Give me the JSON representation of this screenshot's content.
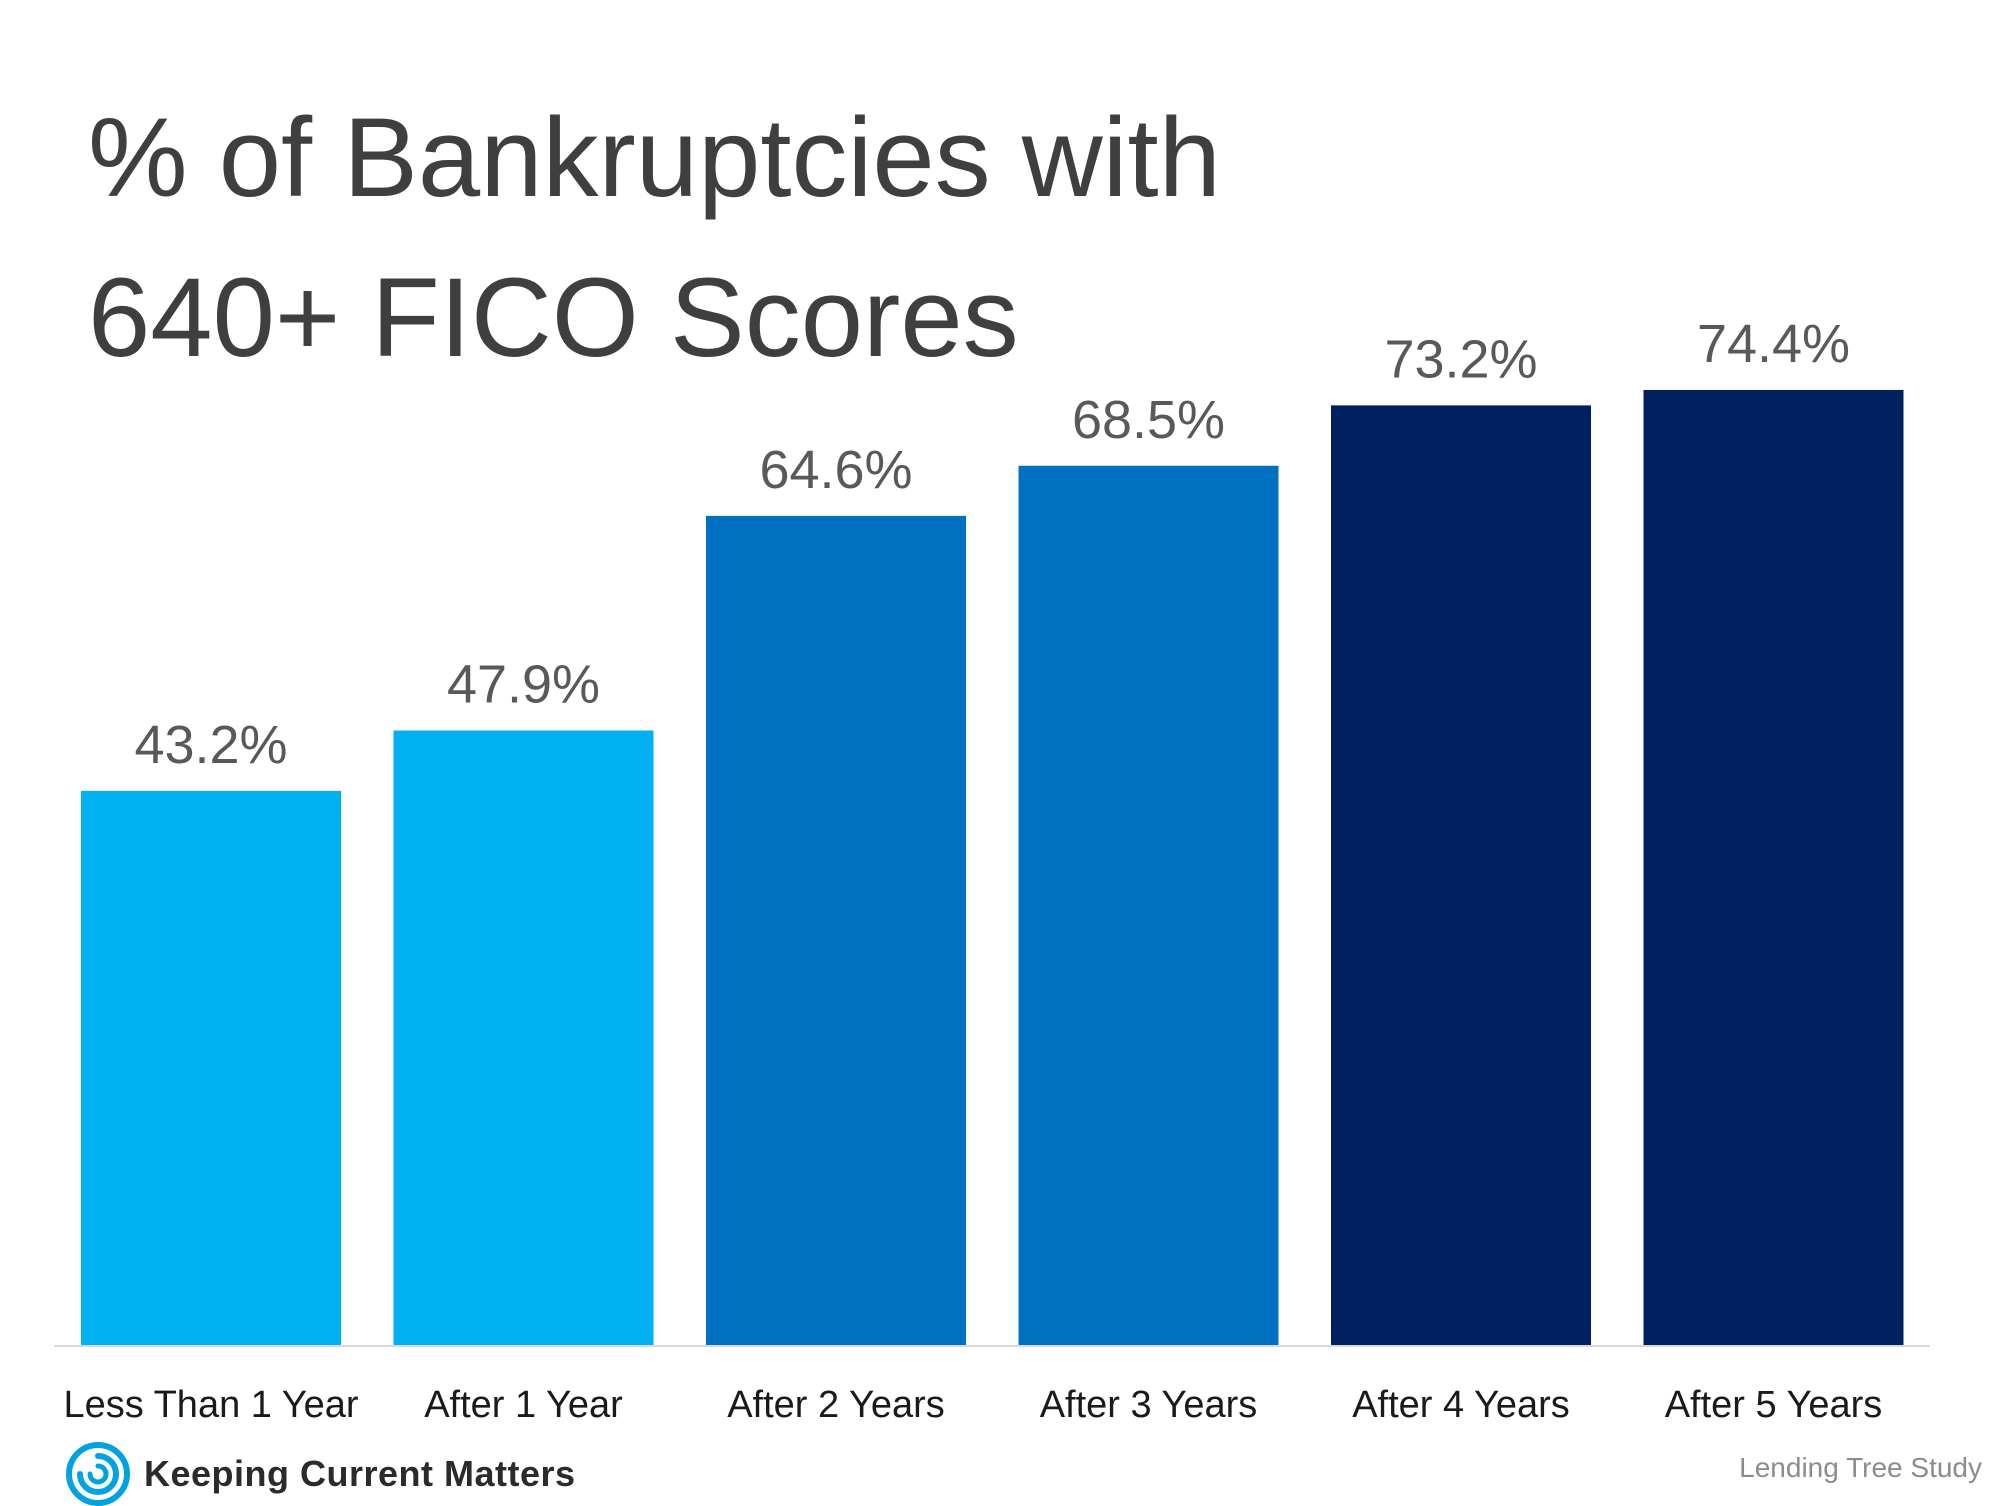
{
  "title_line1": "% of Bankruptcies with",
  "title_line2": "640+ FICO Scores",
  "logo": {
    "icon": "swirl-icon",
    "text": "Keeping Current Matters",
    "color": "#00a3e0"
  },
  "source": "Lending Tree Study",
  "chart_data": {
    "type": "bar",
    "title": "% of Bankruptcies with 640+ FICO Scores",
    "categories": [
      "Less Than 1 Year",
      "After 1 Year",
      "After 2 Years",
      "After 3 Years",
      "After 4 Years",
      "After 5 Years"
    ],
    "values": [
      43.2,
      47.9,
      64.6,
      68.5,
      73.2,
      74.4
    ],
    "data_labels": [
      "43.2%",
      "47.9%",
      "64.6%",
      "68.5%",
      "73.2%",
      "74.4%"
    ],
    "colors": [
      "#00b0f0",
      "#00b0f0",
      "#0070c0",
      "#0070c0",
      "#002060",
      "#002060"
    ],
    "xlabel": "",
    "ylabel": "",
    "ylim": [
      0,
      100
    ],
    "grid": false,
    "legend": "none"
  }
}
